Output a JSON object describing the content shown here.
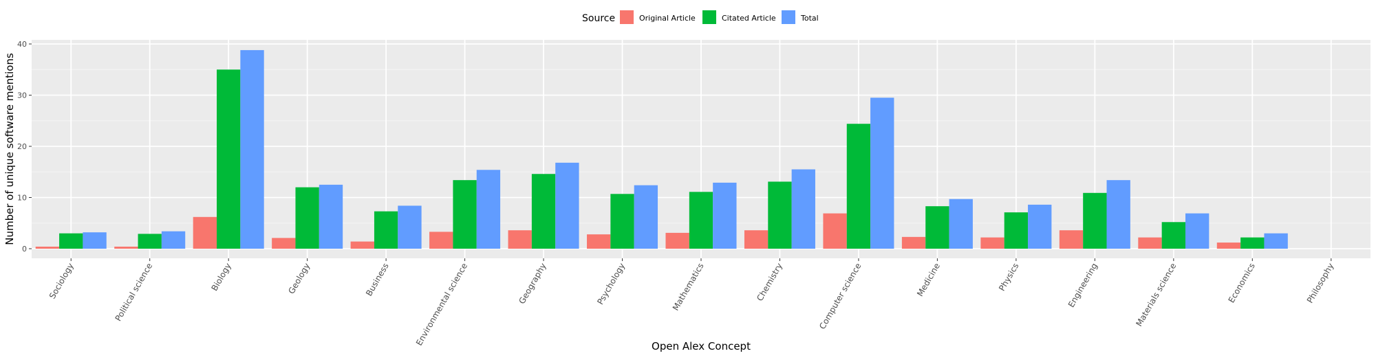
{
  "chart_data": {
    "type": "bar",
    "xlabel": "Open Alex Concept",
    "ylabel": "Number of unique software mentions",
    "ylim": [
      0,
      42
    ],
    "yticks": [
      0,
      10,
      20,
      30,
      40
    ],
    "grid": true,
    "legend": {
      "title": "Source",
      "position": "top"
    },
    "categories": [
      "Sociology",
      "Political science",
      "Biology",
      "Geology",
      "Business",
      "Environmental science",
      "Geography",
      "Psychology",
      "Mathematics",
      "Chemistry",
      "Computer science",
      "Medicine",
      "Physics",
      "Engineering",
      "Materials science",
      "Economics",
      "Philosophy"
    ],
    "series": [
      {
        "name": "Original Article",
        "color": "#F8766D",
        "values": [
          0.4,
          0.4,
          6.2,
          2.1,
          1.4,
          3.3,
          3.6,
          2.8,
          3.1,
          3.6,
          6.9,
          2.3,
          2.2,
          3.6,
          2.2,
          1.2,
          0
        ]
      },
      {
        "name": "Citated Article",
        "color": "#00BA38",
        "values": [
          3.0,
          2.9,
          35.0,
          12.0,
          7.3,
          13.4,
          14.6,
          10.7,
          11.1,
          13.1,
          24.4,
          8.3,
          7.1,
          10.9,
          5.2,
          2.2,
          0
        ]
      },
      {
        "name": "Total",
        "color": "#619CFF",
        "values": [
          3.2,
          3.4,
          38.8,
          12.5,
          8.4,
          15.4,
          16.8,
          12.4,
          12.9,
          15.5,
          29.5,
          9.7,
          8.6,
          13.4,
          6.9,
          3.0,
          0
        ]
      }
    ]
  }
}
